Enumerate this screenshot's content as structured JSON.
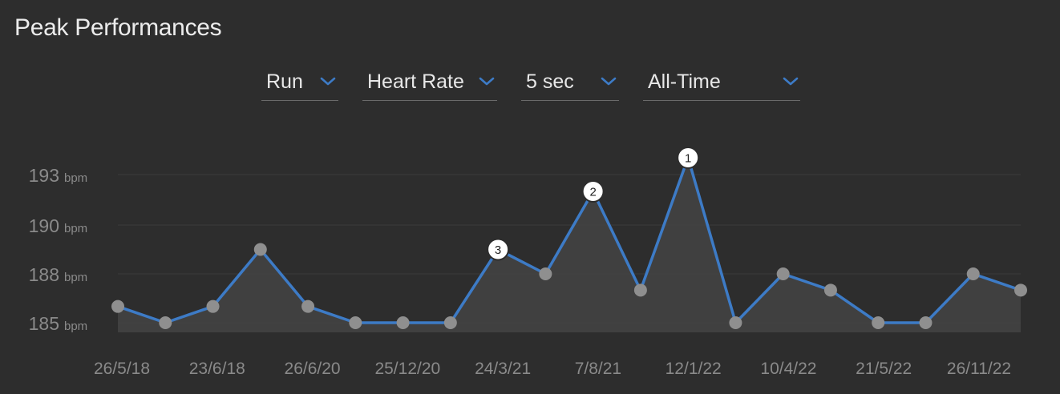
{
  "title": "Peak Performances",
  "filters": {
    "sport": "Run",
    "metric": "Heart Rate",
    "duration": "5 sec",
    "range": "All-Time"
  },
  "colors": {
    "background": "#2d2d2d",
    "line": "#3d7bc6",
    "area": "#444444",
    "point": "#8f8f8f",
    "chevron": "#3d7bc6"
  },
  "chart_data": {
    "type": "line",
    "y_unit": "bpm",
    "y_ticks": [
      {
        "value": 185,
        "label": "185"
      },
      {
        "value": 188,
        "label": "188"
      },
      {
        "value": 190,
        "label": "190"
      },
      {
        "value": 193,
        "label": "193"
      }
    ],
    "ylim": [
      184.5,
      194.5
    ],
    "x_labels": [
      "26/5/18",
      "23/6/18",
      "26/6/20",
      "25/12/20",
      "24/3/21",
      "7/8/21",
      "12/1/22",
      "10/4/22",
      "21/5/22",
      "26/11/22"
    ],
    "values": [
      186,
      185,
      186,
      189,
      186,
      185,
      185,
      185,
      189,
      188,
      192,
      187,
      194,
      185,
      188,
      187,
      185,
      185,
      188,
      187
    ],
    "ranks": [
      {
        "index": 12,
        "label": "1"
      },
      {
        "index": 10,
        "label": "2"
      },
      {
        "index": 8,
        "label": "3"
      }
    ],
    "grid": true,
    "legend": "none"
  }
}
